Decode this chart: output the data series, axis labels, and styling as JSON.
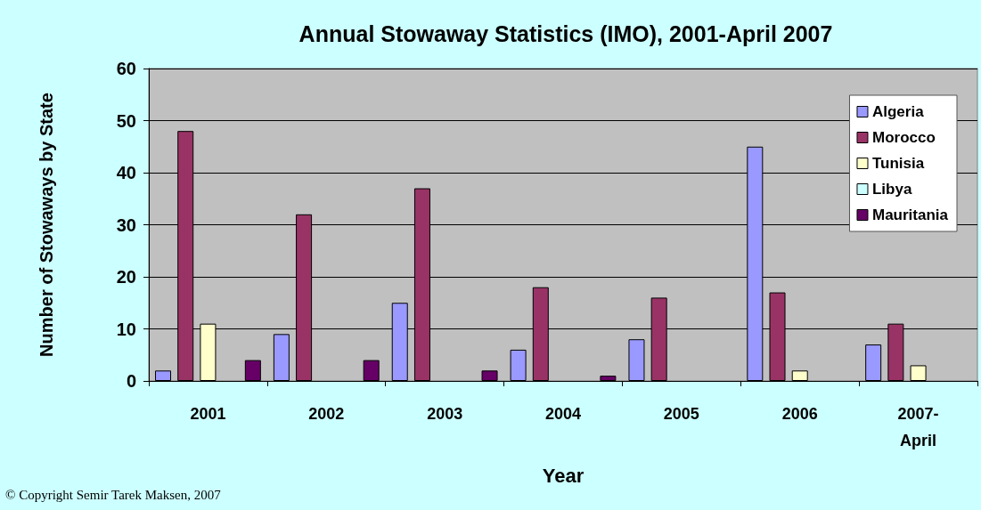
{
  "chart_data": {
    "type": "bar",
    "title": "Annual Stowaway Statistics (IMO), 2001-April 2007",
    "xlabel": "Year",
    "ylabel": "Number of Stowaways by State",
    "categories": [
      "2001",
      "2002",
      "2003",
      "2004",
      "2005",
      "2006",
      "2007-April"
    ],
    "series": [
      {
        "name": "Algeria",
        "color": "#9999ff",
        "values": [
          2,
          9,
          15,
          6,
          8,
          45,
          7
        ]
      },
      {
        "name": "Morocco",
        "color": "#993366",
        "values": [
          48,
          32,
          37,
          18,
          16,
          17,
          11
        ]
      },
      {
        "name": "Tunisia",
        "color": "#ffffcc",
        "values": [
          11,
          0,
          0,
          0,
          0,
          2,
          3
        ]
      },
      {
        "name": "Libya",
        "color": "#ccffff",
        "values": [
          0,
          0,
          0,
          0,
          0,
          0,
          0
        ]
      },
      {
        "name": "Mauritania",
        "color": "#660066",
        "values": [
          4,
          4,
          2,
          1,
          0,
          0,
          0
        ]
      }
    ],
    "ylim": [
      0,
      60
    ],
    "yticks": [
      0,
      10,
      20,
      30,
      40,
      50,
      60
    ],
    "grid": "y",
    "legend": "top right",
    "annotations": [
      "© Copyright Semir Tarek Maksen, 2007"
    ]
  }
}
